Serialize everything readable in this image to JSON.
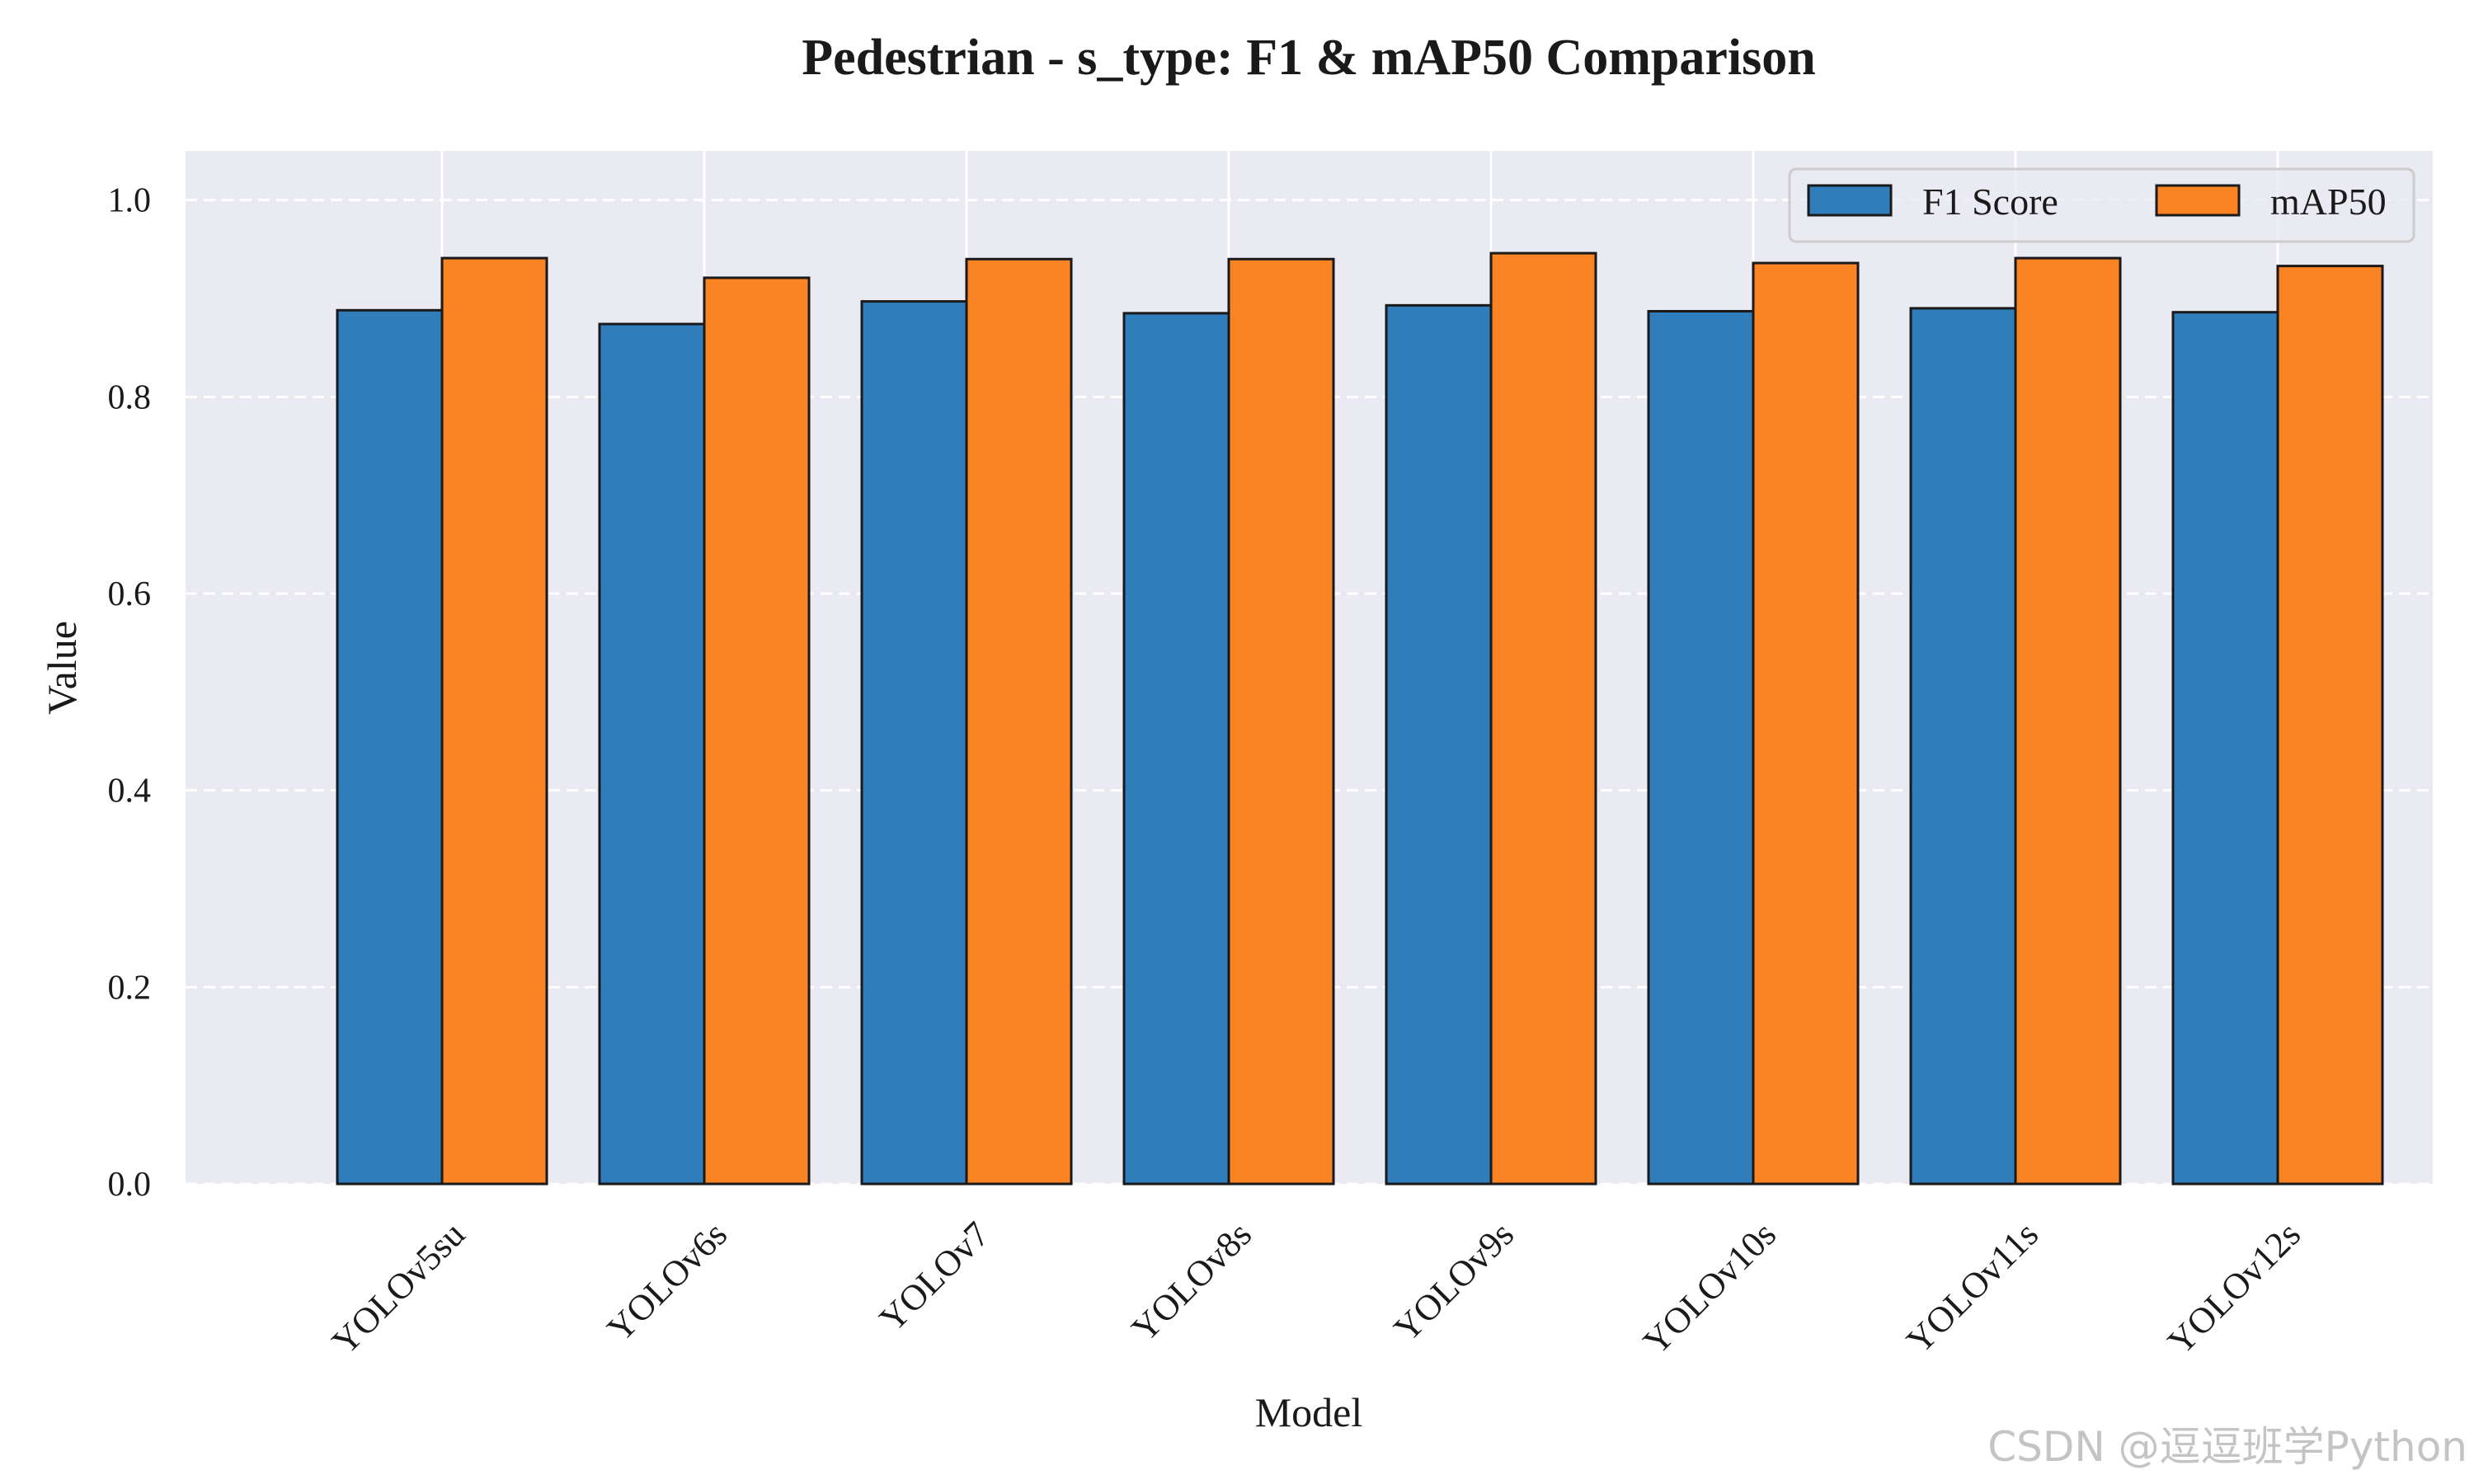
{
  "chart_data": {
    "type": "bar",
    "title": "Pedestrian - s_type: F1 & mAP50 Comparison",
    "xlabel": "Model",
    "ylabel": "Value",
    "categories": [
      "YOLOv5su",
      "YOLOv6s",
      "YOLOv7",
      "YOLOv8s",
      "YOLOv9s",
      "YOLOv10s",
      "YOLOv11s",
      "YOLOv12s"
    ],
    "series": [
      {
        "name": "F1 Score",
        "color": "#2f7dbb",
        "values": [
          0.888,
          0.874,
          0.897,
          0.885,
          0.893,
          0.887,
          0.89,
          0.886
        ]
      },
      {
        "name": "mAP50",
        "color": "#fa8424",
        "values": [
          0.941,
          0.921,
          0.94,
          0.94,
          0.946,
          0.936,
          0.941,
          0.933
        ]
      }
    ],
    "ylim": [
      0,
      1.05
    ],
    "yticks": [
      0.0,
      0.2,
      0.4,
      0.6,
      0.8,
      1.0
    ],
    "ytick_labels": [
      "0.0",
      "0.2",
      "0.4",
      "0.6",
      "0.8",
      "1.0"
    ],
    "grid": true,
    "legend_position": "top-right",
    "background_color": "#eaeaf2"
  },
  "watermark": "CSDN @逗逗班学Python"
}
